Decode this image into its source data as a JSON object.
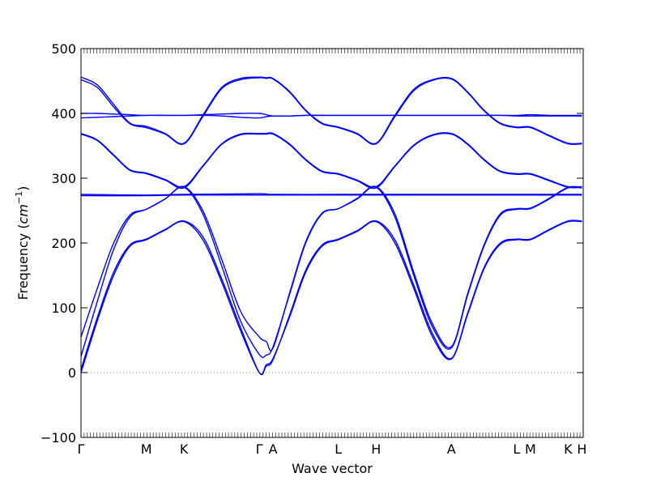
{
  "chart_data": {
    "type": "line",
    "title": "",
    "xlabel": "Wave vector",
    "ylabel": "Frequency (cm⁻¹)",
    "ylabel_prefix": "Frequency (",
    "ylabel_unit": "cm",
    "ylabel_exp": "−1",
    "ylabel_suffix": ")",
    "ylim": [
      -100,
      500
    ],
    "xlim": [
      0,
      8.0
    ],
    "grid": false,
    "line_color": "#0000ff",
    "zero_line_color": "#808080",
    "yticks": [
      -100,
      0,
      100,
      200,
      300,
      400,
      500
    ],
    "xticks": [
      {
        "label": "Γ",
        "x": 0.0
      },
      {
        "label": "M",
        "x": 1.04
      },
      {
        "label": "K",
        "x": 1.64
      },
      {
        "label": "Γ",
        "x": 2.84
      },
      {
        "label": "A",
        "x": 3.06
      },
      {
        "label": "L",
        "x": 4.1
      },
      {
        "label": "H",
        "x": 4.7
      },
      {
        "label": "A",
        "x": 5.9
      },
      {
        "label": "L",
        "x": 6.94
      },
      {
        "label": "M",
        "x": 7.16
      },
      {
        "label": "K",
        "x": 7.76
      },
      {
        "label": "H",
        "x": 7.98
      }
    ],
    "series": [
      {
        "x": [
          0,
          0.26,
          0.52,
          0.78,
          1.04,
          1.34,
          1.64,
          1.94,
          2.24,
          2.54,
          2.84,
          2.95,
          3.06,
          3.32,
          3.58,
          3.84,
          4.1,
          4.4,
          4.7,
          5.0,
          5.3,
          5.6,
          5.9,
          6.16,
          6.42,
          6.68,
          6.94,
          7.16,
          7.46,
          7.76,
          7.98
        ],
        "values": [
          0,
          80,
          150,
          195,
          205,
          220,
          233,
          205,
          140,
          65,
          0,
          12,
          22,
          85,
          155,
          195,
          205,
          218,
          233,
          200,
          130,
          55,
          21,
          90,
          160,
          198,
          205,
          205,
          220,
          233,
          233
        ]
      },
      {
        "x": [
          0,
          0.26,
          0.52,
          0.78,
          1.04,
          1.34,
          1.64,
          1.94,
          2.24,
          2.54,
          2.84,
          2.95,
          3.06,
          3.32,
          3.58,
          3.84,
          4.1,
          4.4,
          4.7,
          5.0,
          5.3,
          5.6,
          5.9,
          6.16,
          6.42,
          6.68,
          6.94,
          7.16,
          7.46,
          7.76,
          7.98
        ],
        "values": [
          5,
          85,
          155,
          197,
          206,
          221,
          234,
          210,
          145,
          70,
          0,
          10,
          20,
          88,
          158,
          197,
          206,
          219,
          234,
          205,
          135,
          60,
          22,
          92,
          162,
          200,
          206,
          206,
          221,
          234,
          234
        ]
      },
      {
        "x": [
          0,
          0.26,
          0.52,
          0.78,
          1.04,
          1.34,
          1.64,
          1.94,
          2.24,
          2.54,
          2.84,
          2.95,
          3.06,
          3.32,
          3.58,
          3.84,
          4.1,
          4.4,
          4.7,
          5.0,
          5.3,
          5.6,
          5.9,
          6.16,
          6.42,
          6.68,
          6.94,
          7.16,
          7.46,
          7.76,
          7.98
        ],
        "values": [
          25,
          110,
          190,
          240,
          252,
          268,
          286,
          245,
          165,
          80,
          28,
          27,
          40,
          120,
          200,
          245,
          253,
          268,
          286,
          240,
          150,
          70,
          38,
          120,
          195,
          243,
          252,
          253,
          268,
          285,
          285
        ]
      },
      {
        "x": [
          0,
          0.26,
          0.52,
          0.78,
          1.04,
          1.34,
          1.64,
          1.94,
          2.24,
          2.54,
          2.84,
          2.95,
          3.06,
          3.32,
          3.58,
          3.84,
          4.1,
          4.4,
          4.7,
          5.0,
          5.3,
          5.6,
          5.9,
          6.16,
          6.42,
          6.68,
          6.94,
          7.16,
          7.46,
          7.76,
          7.98
        ],
        "values": [
          55,
          130,
          200,
          243,
          252,
          268,
          287,
          250,
          175,
          95,
          55,
          48,
          38,
          122,
          202,
          246,
          253,
          269,
          287,
          245,
          155,
          75,
          40,
          122,
          197,
          245,
          253,
          254,
          269,
          286,
          286
        ]
      },
      {
        "x": [
          0,
          1.04,
          1.64,
          2.84,
          3.06,
          4.1,
          4.7,
          5.9,
          6.94,
          7.16,
          7.76,
          7.98
        ],
        "values": [
          275,
          274,
          275,
          276,
          275,
          275,
          275,
          275,
          275,
          275,
          275,
          275
        ]
      },
      {
        "x": [
          0,
          1.04,
          1.64,
          2.84,
          3.06,
          4.1,
          4.7,
          5.9,
          6.94,
          7.16,
          7.76,
          7.98
        ],
        "values": [
          273,
          273,
          274,
          274,
          274,
          274,
          274,
          274,
          274,
          274,
          274,
          274
        ]
      },
      {
        "x": [
          0,
          0.26,
          0.52,
          0.78,
          1.04,
          1.34,
          1.64,
          1.94,
          2.24,
          2.54,
          2.84,
          2.95,
          3.06,
          3.32,
          3.58,
          3.84,
          4.1,
          4.4,
          4.7,
          5.0,
          5.3,
          5.6,
          5.9,
          6.16,
          6.42,
          6.68,
          6.94,
          7.16,
          7.46,
          7.76,
          7.98
        ],
        "values": [
          368,
          358,
          335,
          312,
          307,
          297,
          285,
          318,
          352,
          367,
          368,
          368,
          368,
          352,
          328,
          310,
          306,
          296,
          285,
          318,
          350,
          366,
          368,
          352,
          328,
          310,
          306,
          306,
          296,
          286,
          286
        ]
      },
      {
        "x": [
          0,
          0.26,
          0.52,
          0.78,
          1.04,
          1.34,
          1.64,
          1.94,
          2.24,
          2.54,
          2.84,
          2.95,
          3.06,
          3.32,
          3.58,
          3.84,
          4.1,
          4.4,
          4.7,
          5.0,
          5.3,
          5.6,
          5.9,
          6.16,
          6.42,
          6.68,
          6.94,
          7.16,
          7.46,
          7.76,
          7.98
        ],
        "values": [
          369,
          359,
          336,
          313,
          308,
          298,
          287,
          319,
          353,
          368,
          369,
          369,
          369,
          353,
          329,
          311,
          307,
          297,
          287,
          319,
          351,
          367,
          369,
          353,
          329,
          311,
          307,
          307,
          297,
          287,
          287
        ]
      },
      {
        "x": [
          0,
          0.26,
          0.52,
          0.78,
          1.04,
          1.34,
          1.64,
          1.94,
          2.24,
          2.54,
          2.84,
          2.95,
          3.06,
          3.32,
          3.58,
          3.84,
          4.1,
          4.4,
          4.7,
          5.0,
          5.3,
          5.6,
          5.9,
          6.16,
          6.42,
          6.68,
          6.94,
          7.16,
          7.46,
          7.76,
          7.98
        ],
        "values": [
          400,
          400,
          399,
          398,
          397,
          397,
          397,
          398,
          399,
          400,
          400,
          398,
          396,
          396,
          397,
          397,
          397,
          397,
          397,
          397,
          397,
          397,
          397,
          397,
          397,
          397,
          397,
          398,
          397,
          397,
          397
        ]
      },
      {
        "x": [
          0,
          0.26,
          0.52,
          0.78,
          1.04,
          1.34,
          1.64,
          1.94,
          2.24,
          2.54,
          2.84,
          2.95,
          3.06,
          3.32,
          3.58,
          3.84,
          4.1,
          4.4,
          4.7,
          5.0,
          5.3,
          5.6,
          5.9,
          6.16,
          6.42,
          6.68,
          6.94,
          7.16,
          7.46,
          7.76,
          7.98
        ],
        "values": [
          393,
          394,
          395,
          396,
          397,
          397,
          397,
          397,
          396,
          394,
          393,
          395,
          396,
          396,
          397,
          397,
          397,
          397,
          397,
          397,
          397,
          397,
          397,
          397,
          397,
          397,
          396,
          396,
          396,
          396,
          396
        ]
      },
      {
        "x": [
          0,
          0.26,
          0.52,
          0.78,
          1.04,
          1.34,
          1.64,
          1.94,
          2.24,
          2.54,
          2.84,
          2.95,
          3.06,
          3.32,
          3.58,
          3.84,
          4.1,
          4.4,
          4.7,
          5.0,
          5.3,
          5.6,
          5.9,
          6.16,
          6.42,
          6.68,
          6.94,
          7.16,
          7.46,
          7.76,
          7.98
        ],
        "values": [
          452,
          440,
          410,
          384,
          378,
          368,
          353,
          395,
          438,
          452,
          455,
          454,
          453,
          433,
          404,
          384,
          378,
          368,
          353,
          395,
          435,
          451,
          453,
          432,
          404,
          384,
          378,
          378,
          365,
          353,
          353
        ]
      },
      {
        "x": [
          0,
          0.26,
          0.52,
          0.78,
          1.04,
          1.34,
          1.64,
          1.94,
          2.24,
          2.54,
          2.84,
          2.95,
          3.06,
          3.32,
          3.58,
          3.84,
          4.1,
          4.4,
          4.7,
          5.0,
          5.3,
          5.6,
          5.9,
          6.16,
          6.42,
          6.68,
          6.94,
          7.16,
          7.46,
          7.76,
          7.98
        ],
        "values": [
          456,
          444,
          414,
          385,
          380,
          369,
          354,
          397,
          440,
          454,
          456,
          455,
          454,
          434,
          405,
          385,
          379,
          369,
          354,
          397,
          437,
          452,
          454,
          433,
          405,
          385,
          379,
          379,
          366,
          354,
          354
        ]
      }
    ]
  }
}
